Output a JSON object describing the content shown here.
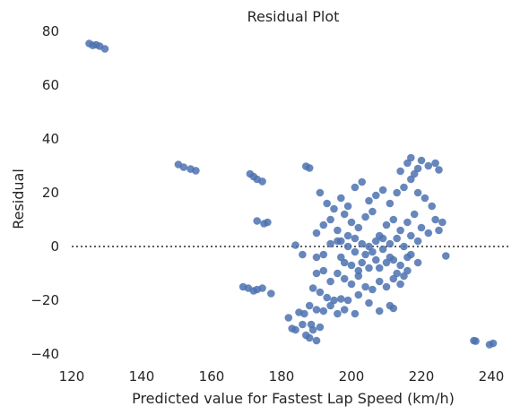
{
  "chart_data": {
    "type": "scatter",
    "title": "Residual Plot",
    "xlabel": "Predicted value for Fastest Lap Speed (km/h)",
    "ylabel": "Residual",
    "xlim": [
      120,
      246
    ],
    "ylim": [
      -44,
      82
    ],
    "xticks": [
      "120",
      "140",
      "160",
      "180",
      "200",
      "220",
      "240"
    ],
    "yticks": [
      "−40",
      "−20",
      "0",
      "20",
      "40",
      "60",
      "80"
    ],
    "grid": false,
    "reference_line": {
      "y": 0,
      "style": "dotted",
      "x_range": [
        120,
        245
      ]
    },
    "point_color": "#4c72b0",
    "series": [
      {
        "points": [
          [
            125,
            75.5
          ],
          [
            126,
            74.8
          ],
          [
            127,
            75
          ],
          [
            128,
            74.5
          ],
          [
            129.5,
            73.5
          ],
          [
            150.5,
            30.5
          ],
          [
            152,
            29.5
          ],
          [
            154,
            28.8
          ],
          [
            155.5,
            28.2
          ],
          [
            171,
            27
          ],
          [
            172,
            26
          ],
          [
            173,
            25
          ],
          [
            174.5,
            24.2
          ],
          [
            187,
            29.8
          ],
          [
            188,
            29.2
          ],
          [
            173,
            9.5
          ],
          [
            175,
            8.5
          ],
          [
            176,
            9
          ],
          [
            169,
            -15
          ],
          [
            170.5,
            -15.5
          ],
          [
            172,
            -16.5
          ],
          [
            173,
            -16
          ],
          [
            174.5,
            -15.5
          ],
          [
            177,
            -17.5
          ],
          [
            182,
            -26.5
          ],
          [
            183,
            -30.5
          ],
          [
            184,
            -31
          ],
          [
            186,
            -29
          ],
          [
            187,
            -33
          ],
          [
            188,
            -34
          ],
          [
            188.5,
            -29
          ],
          [
            190,
            -35
          ],
          [
            189,
            -31
          ],
          [
            191,
            -30
          ],
          [
            185,
            -24.5
          ],
          [
            186.5,
            -25
          ],
          [
            188,
            -22
          ],
          [
            190,
            -23.5
          ],
          [
            192,
            -24
          ],
          [
            194,
            -22
          ],
          [
            196,
            -25
          ],
          [
            198,
            -23.5
          ],
          [
            201,
            -25
          ],
          [
            189,
            -15.5
          ],
          [
            191,
            -17
          ],
          [
            193,
            -19
          ],
          [
            195,
            -20
          ],
          [
            197,
            -19.5
          ],
          [
            199,
            -20
          ],
          [
            202,
            -18
          ],
          [
            205,
            -21
          ],
          [
            208,
            -24
          ],
          [
            211,
            -22
          ],
          [
            212,
            -23
          ],
          [
            184,
            0.5
          ],
          [
            186,
            -3
          ],
          [
            190,
            -4
          ],
          [
            192,
            -3
          ],
          [
            194,
            1
          ],
          [
            196,
            2
          ],
          [
            197,
            -4
          ],
          [
            199,
            0
          ],
          [
            201,
            -2
          ],
          [
            203,
            -6
          ],
          [
            205,
            -8
          ],
          [
            207,
            -5
          ],
          [
            209,
            3
          ],
          [
            211,
            -4
          ],
          [
            213,
            -10
          ],
          [
            215,
            -11
          ],
          [
            217,
            -3
          ],
          [
            219,
            -6
          ],
          [
            190,
            -10
          ],
          [
            192,
            -9
          ],
          [
            194,
            -13
          ],
          [
            196,
            -10
          ],
          [
            198,
            -12
          ],
          [
            200,
            -14
          ],
          [
            202,
            -11
          ],
          [
            204,
            -15
          ],
          [
            206,
            -16
          ],
          [
            208,
            -13
          ],
          [
            210,
            -15
          ],
          [
            212,
            -12
          ],
          [
            214,
            -14
          ],
          [
            216,
            -9
          ],
          [
            190,
            5
          ],
          [
            192,
            8
          ],
          [
            194,
            10
          ],
          [
            196,
            6
          ],
          [
            198,
            12
          ],
          [
            200,
            9
          ],
          [
            202,
            7
          ],
          [
            204,
            11
          ],
          [
            206,
            13
          ],
          [
            208,
            4
          ],
          [
            210,
            8
          ],
          [
            212,
            10
          ],
          [
            214,
            6
          ],
          [
            216,
            9
          ],
          [
            218,
            12
          ],
          [
            220,
            7
          ],
          [
            222,
            5
          ],
          [
            224,
            10
          ],
          [
            225,
            6
          ],
          [
            226,
            9
          ],
          [
            191,
            20
          ],
          [
            193,
            16
          ],
          [
            195,
            14
          ],
          [
            197,
            18
          ],
          [
            199,
            15
          ],
          [
            201,
            22
          ],
          [
            203,
            24
          ],
          [
            205,
            17
          ],
          [
            207,
            19
          ],
          [
            209,
            21
          ],
          [
            211,
            16
          ],
          [
            213,
            20
          ],
          [
            215,
            22
          ],
          [
            217,
            25
          ],
          [
            219,
            20
          ],
          [
            221,
            18
          ],
          [
            223,
            15
          ],
          [
            214,
            28
          ],
          [
            216,
            31
          ],
          [
            217,
            33
          ],
          [
            219,
            29
          ],
          [
            220,
            32
          ],
          [
            222,
            30
          ],
          [
            224,
            31
          ],
          [
            225,
            28.5
          ],
          [
            218,
            27
          ],
          [
            197,
            2
          ],
          [
            199,
            4
          ],
          [
            201,
            3
          ],
          [
            203,
            1
          ],
          [
            205,
            0
          ],
          [
            207,
            2
          ],
          [
            209,
            -1
          ],
          [
            211,
            1
          ],
          [
            213,
            3
          ],
          [
            215,
            0
          ],
          [
            217,
            4
          ],
          [
            219,
            2
          ],
          [
            198,
            -6
          ],
          [
            200,
            -7
          ],
          [
            202,
            -9
          ],
          [
            204,
            -3
          ],
          [
            206,
            -2
          ],
          [
            208,
            -8
          ],
          [
            210,
            -6
          ],
          [
            212,
            -5
          ],
          [
            214,
            -7
          ],
          [
            216,
            -4
          ],
          [
            227,
            -3.5
          ],
          [
            235,
            -35
          ],
          [
            235.5,
            -35.2
          ],
          [
            239.5,
            -36.5
          ],
          [
            240.5,
            -36
          ]
        ]
      }
    ]
  }
}
